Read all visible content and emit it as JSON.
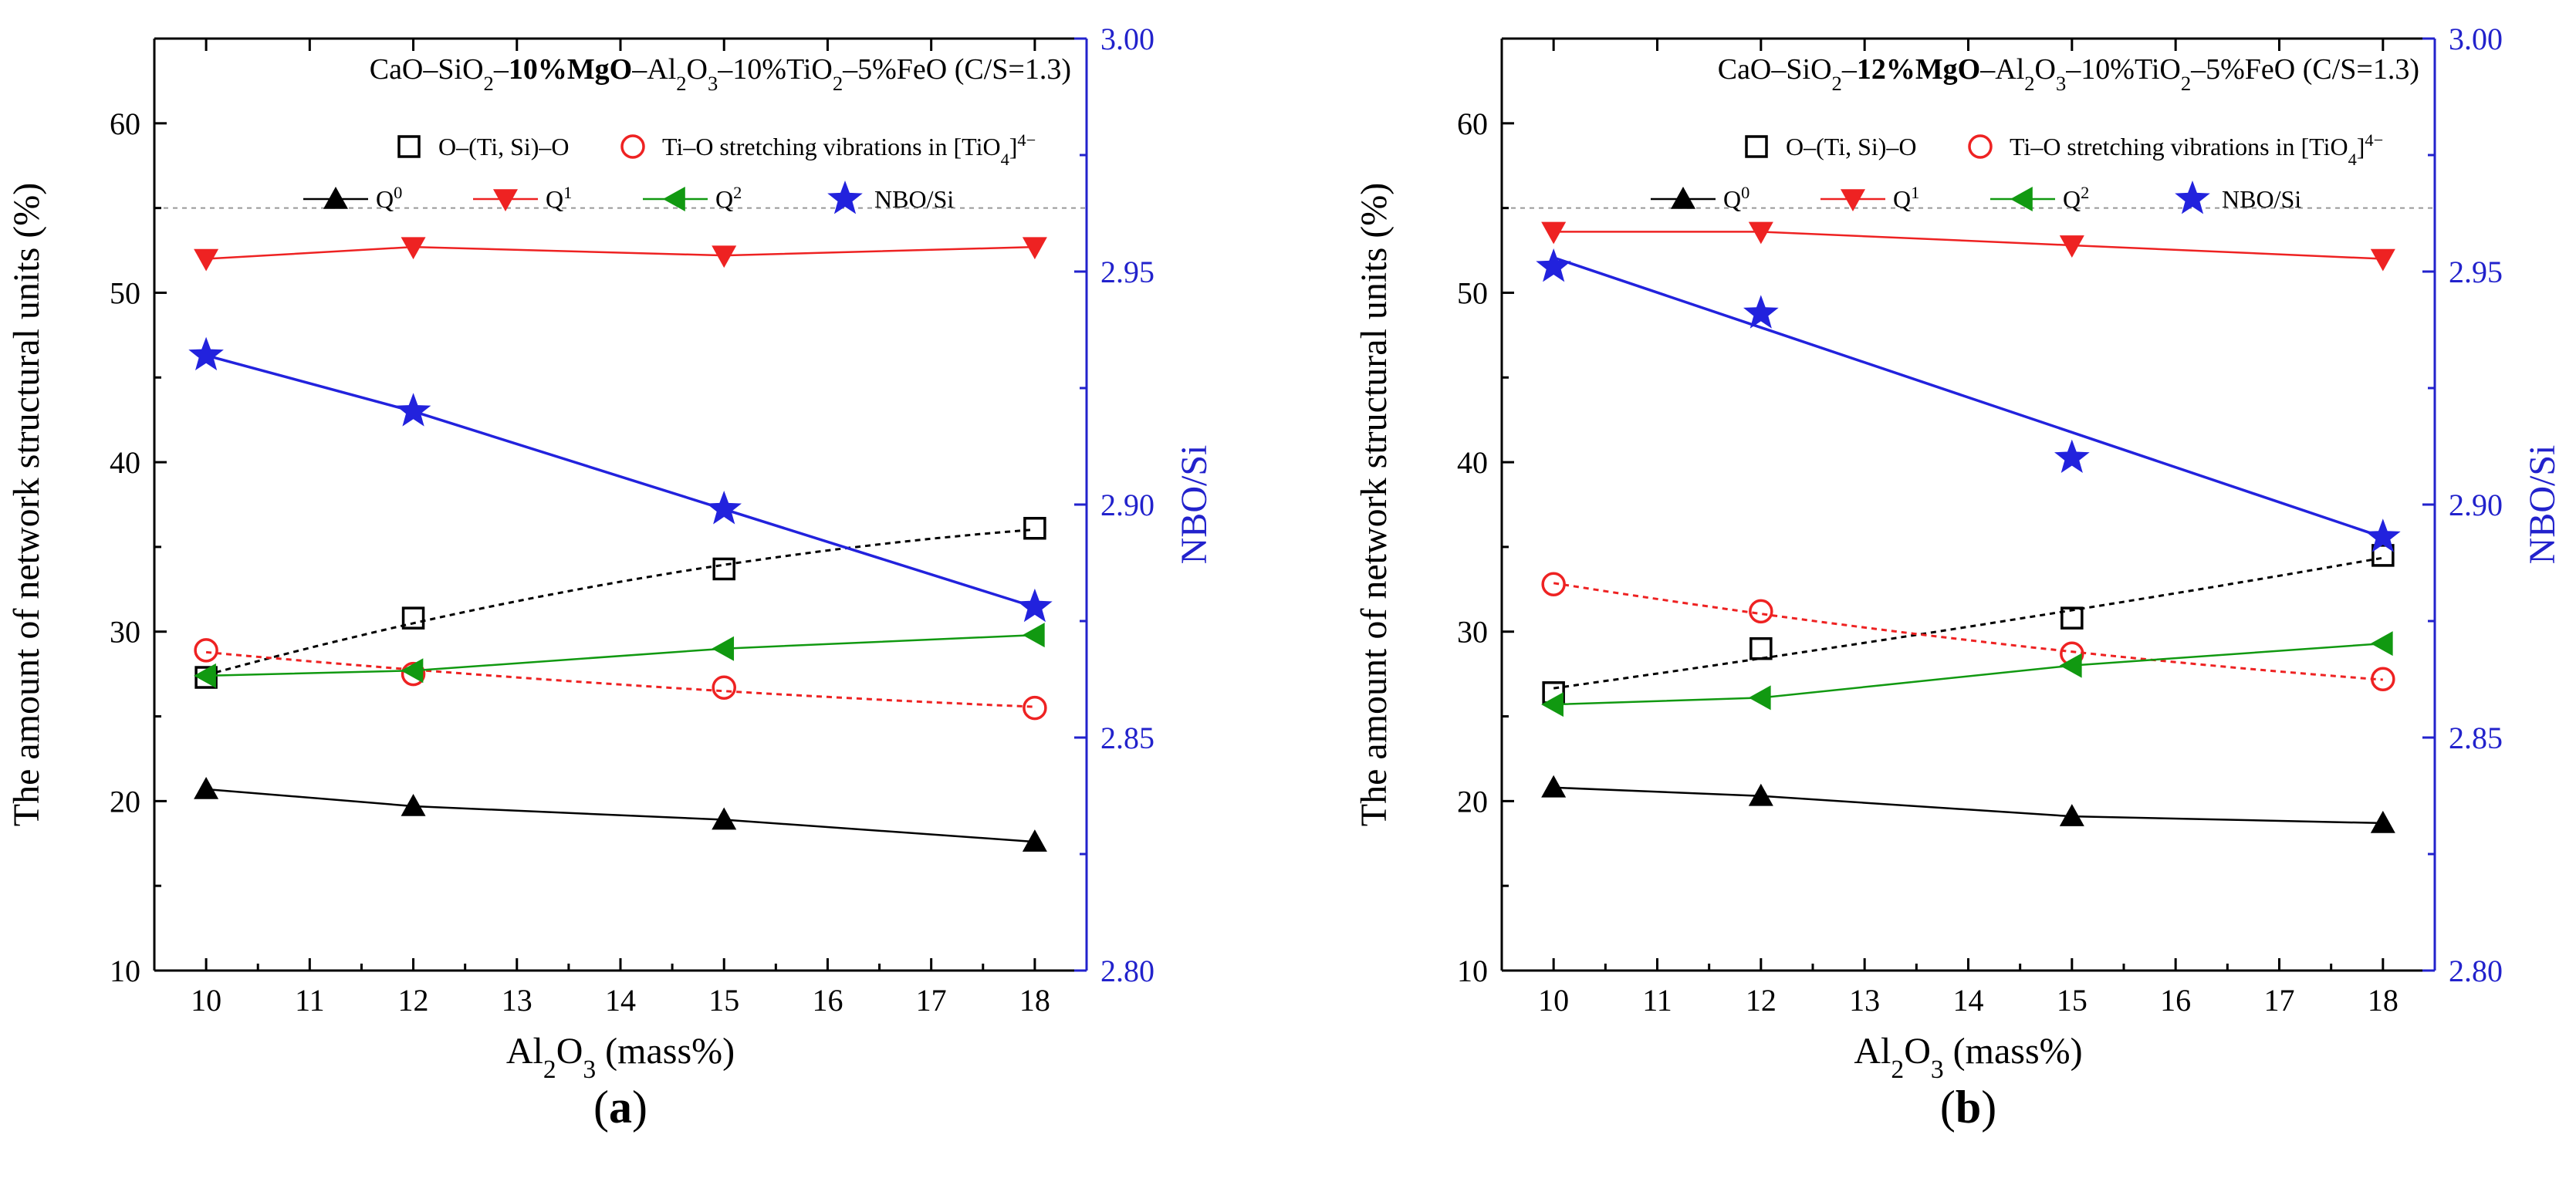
{
  "chart_data": [
    {
      "type": "line",
      "panel_label": "(a)",
      "title": "CaO–SiO₂–10%MgO–Al₂O₃–10%TiO₂–5%FeO (C/S=1.3)",
      "xlabel": "Al₂O₃ (mass%)",
      "ylabel": "The amount of network structural units (%)",
      "y2label": "NBO/Si",
      "xlim": [
        9.5,
        18.5
      ],
      "ylim": [
        10,
        65
      ],
      "y2lim": [
        2.8,
        3.0
      ],
      "xticks": [
        10,
        11,
        12,
        13,
        14,
        15,
        16,
        17,
        18
      ],
      "yticks": [
        10,
        20,
        30,
        40,
        50,
        60
      ],
      "y2ticks": [
        "2.80",
        "2.85",
        "2.90",
        "2.95",
        "3.00"
      ],
      "reference_line_y": 55,
      "x": [
        10,
        12,
        15,
        18
      ],
      "series": [
        {
          "name": "O–(Ti, Si)–O",
          "values": [
            27.3,
            30.8,
            33.7,
            36.1
          ],
          "color": "#000000",
          "marker": "square-open",
          "line": "dotted-fit"
        },
        {
          "name": "Ti–O stretching vibrations in [TiO₄]⁴⁻",
          "values": [
            28.9,
            27.5,
            26.7,
            25.5
          ],
          "color": "#ee2222",
          "marker": "circle-open",
          "line": "dotted-fit"
        },
        {
          "name": "Q⁰",
          "values": [
            20.7,
            19.7,
            18.9,
            17.6
          ],
          "color": "#000000",
          "marker": "triangle-up",
          "line": "solid"
        },
        {
          "name": "Q¹",
          "values": [
            52.0,
            52.7,
            52.2,
            52.7
          ],
          "color": "#ee2222",
          "marker": "triangle-down",
          "line": "solid"
        },
        {
          "name": "Q²",
          "values": [
            27.4,
            27.7,
            29.0,
            29.8
          ],
          "color": "#119911",
          "marker": "triangle-left",
          "line": "solid"
        },
        {
          "name": "NBO/Si",
          "values": [
            2.932,
            2.92,
            2.899,
            2.878
          ],
          "color": "#2222dd",
          "marker": "star",
          "line": "solid",
          "axis": "right"
        }
      ],
      "legend": [
        "O–(Ti, Si)–O",
        "Ti–O stretching vibrations in [TiO₄]⁴⁻",
        "Q⁰",
        "Q¹",
        "Q²",
        "NBO/Si"
      ]
    },
    {
      "type": "line",
      "panel_label": "(b)",
      "title": "CaO–SiO₂–12%MgO–Al₂O₃–10%TiO₂–5%FeO (C/S=1.3)",
      "xlabel": "Al₂O₃ (mass%)",
      "ylabel": "The amount of network structural units (%)",
      "y2label": "NBO/Si",
      "xlim": [
        9.5,
        18.5
      ],
      "ylim": [
        10,
        65
      ],
      "y2lim": [
        2.8,
        3.0
      ],
      "xticks": [
        10,
        11,
        12,
        13,
        14,
        15,
        16,
        17,
        18
      ],
      "yticks": [
        10,
        20,
        30,
        40,
        50,
        60
      ],
      "y2ticks": [
        "2.80",
        "2.85",
        "2.90",
        "2.95",
        "3.00"
      ],
      "reference_line_y": 55,
      "x": [
        10,
        12,
        15,
        18
      ],
      "series": [
        {
          "name": "O–(Ti, Si)–O",
          "values": [
            26.4,
            29.0,
            30.8,
            34.5
          ],
          "color": "#000000",
          "marker": "square-open",
          "line": "dotted-fit"
        },
        {
          "name": "Ti–O stretching vibrations in [TiO₄]⁴⁻",
          "values": [
            32.8,
            31.2,
            28.7,
            27.2
          ],
          "color": "#ee2222",
          "marker": "circle-open",
          "line": "dotted-fit"
        },
        {
          "name": "Q⁰",
          "values": [
            20.8,
            20.3,
            19.1,
            18.7
          ],
          "color": "#000000",
          "marker": "triangle-up",
          "line": "solid"
        },
        {
          "name": "Q¹",
          "values": [
            53.6,
            53.6,
            52.8,
            52.0
          ],
          "color": "#ee2222",
          "marker": "triangle-down",
          "line": "solid"
        },
        {
          "name": "Q²",
          "values": [
            25.7,
            26.1,
            28.0,
            29.3
          ],
          "color": "#119911",
          "marker": "triangle-left",
          "line": "solid"
        },
        {
          "name": "NBO/Si",
          "values": [
            2.951,
            2.941,
            2.91,
            2.893
          ],
          "color": "#2222dd",
          "marker": "star",
          "line": "solid",
          "axis": "right",
          "fit": [
            2.953,
            2.893
          ]
        }
      ],
      "legend": [
        "O–(Ti, Si)–O",
        "Ti–O stretching vibrations in [TiO₄]⁴⁻",
        "Q⁰",
        "Q¹",
        "Q²",
        "NBO/Si"
      ]
    }
  ]
}
